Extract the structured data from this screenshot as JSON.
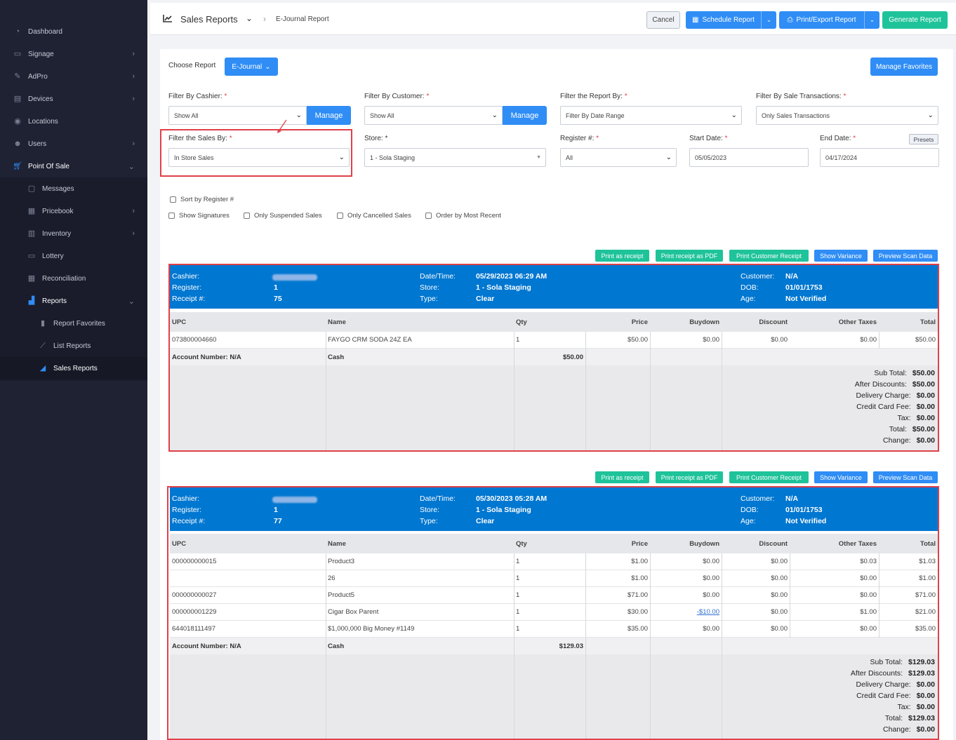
{
  "sidebar": {
    "items": [
      {
        "label": "Dashboard",
        "icon": "dashboard-icon",
        "chevron": false
      },
      {
        "label": "Signage",
        "icon": "monitor-icon",
        "chevron": true
      },
      {
        "label": "AdPro",
        "icon": "brush-icon",
        "chevron": true
      },
      {
        "label": "Devices",
        "icon": "devices-icon",
        "chevron": true
      },
      {
        "label": "Locations",
        "icon": "location-pin-icon",
        "chevron": false
      },
      {
        "label": "Users",
        "icon": "users-icon",
        "chevron": true
      },
      {
        "label": "Point Of Sale",
        "icon": "cart-icon",
        "chevron": true
      }
    ],
    "pos_items": [
      {
        "label": "Messages",
        "icon": "message-icon",
        "chevron": false
      },
      {
        "label": "Pricebook",
        "icon": "calculator-icon",
        "chevron": true
      },
      {
        "label": "Inventory",
        "icon": "inventory-icon",
        "chevron": true
      },
      {
        "label": "Lottery",
        "icon": "ticket-icon",
        "chevron": false
      },
      {
        "label": "Reconciliation",
        "icon": "grid-icon",
        "chevron": false
      },
      {
        "label": "Reports",
        "icon": "chart-icon",
        "chevron": true
      }
    ],
    "report_items": [
      {
        "label": "Report Favorites",
        "icon": "bookmark-icon"
      },
      {
        "label": "List Reports",
        "icon": "line-chart-icon"
      },
      {
        "label": "Sales Reports",
        "icon": "area-chart-icon"
      }
    ]
  },
  "header": {
    "title": "Sales Reports",
    "breadcrumb": "E-Journal Report",
    "cancel": "Cancel",
    "schedule": "Schedule Report",
    "print_export": "Print/Export Report",
    "generate": "Generate Report"
  },
  "choose": {
    "label": "Choose Report",
    "selected": "E-Journal",
    "manage_favorites": "Manage Favorites"
  },
  "filters": {
    "cashier": {
      "label": "Filter By Cashier:",
      "value": "Show All",
      "manage": "Manage"
    },
    "customer": {
      "label": "Filter By Customer:",
      "value": "Show All",
      "manage": "Manage"
    },
    "report_by": {
      "label": "Filter the Report By:",
      "value": "Filter By Date Range"
    },
    "sale_trans": {
      "label": "Filter By Sale Transactions:",
      "value": "Only Sales Transactions"
    },
    "sales_by": {
      "label": "Filter the Sales By:",
      "value": "In Store Sales"
    },
    "store": {
      "label": "Store:",
      "value": "1 - Sola Staging"
    },
    "register": {
      "label": "Register #:",
      "value": "All"
    },
    "start_date": {
      "label": "Start Date:",
      "value": "05/05/2023"
    },
    "end_date": {
      "label": "End Date:",
      "value": "04/17/2024"
    },
    "presets": "Presets",
    "required": "*"
  },
  "options": {
    "sort_register": "Sort by Register #",
    "show_signatures": "Show Signatures",
    "only_suspended": "Only Suspended Sales",
    "only_cancelled": "Only Cancelled Sales",
    "order_recent": "Order by Most Recent"
  },
  "actions": {
    "print_receipt": "Print as receipt",
    "print_pdf": "Print receipt as PDF",
    "print_customer": "Print Customer Receipt",
    "show_variance": "Show Variance",
    "preview_scan": "Preview Scan Data"
  },
  "labels": {
    "cashier": "Cashier:",
    "register": "Register:",
    "receipt": "Receipt #:",
    "datetime": "Date/Time:",
    "store": "Store:",
    "type": "Type:",
    "customer": "Customer:",
    "dob": "DOB:",
    "age": "Age:",
    "cols": [
      "UPC",
      "Name",
      "Qty",
      "Price",
      "Buydown",
      "Discount",
      "Other Taxes",
      "Total"
    ],
    "sub_total": "Sub Total:",
    "after_discounts": "After Discounts:",
    "delivery": "Delivery Charge:",
    "cc_fee": "Credit Card Fee:",
    "tax": "Tax:",
    "total": "Total:",
    "change": "Change:"
  },
  "receipts": [
    {
      "register": "1",
      "receipt": "75",
      "datetime": "05/29/2023 06:29 AM",
      "store": "1 - Sola Staging",
      "type": "Clear",
      "customer": "N/A",
      "dob": "01/01/1753",
      "age": "Not Verified",
      "rows": [
        {
          "upc": "073800004660",
          "name": "FAYGO CRM SODA 24Z EA",
          "qty": "1",
          "price": "$50.00",
          "buydown": "$0.00",
          "discount": "$0.00",
          "other_taxes": "$0.00",
          "total": "$50.00"
        }
      ],
      "account": "Account Number: N/A",
      "tender": "Cash",
      "tender_amount": "$50.00",
      "sub_total": "$50.00",
      "after_discounts": "$50.00",
      "delivery": "$0.00",
      "cc_fee": "$0.00",
      "tax": "$0.00",
      "total": "$50.00",
      "change": "$0.00"
    },
    {
      "register": "1",
      "receipt": "77",
      "datetime": "05/30/2023 05:28 AM",
      "store": "1 - Sola Staging",
      "type": "Clear",
      "customer": "N/A",
      "dob": "01/01/1753",
      "age": "Not Verified",
      "rows": [
        {
          "upc": "000000000015",
          "name": "Product3",
          "qty": "1",
          "price": "$1.00",
          "buydown": "$0.00",
          "discount": "$0.00",
          "other_taxes": "$0.03",
          "total": "$1.03"
        },
        {
          "upc": "",
          "name": "26",
          "qty": "1",
          "price": "$1.00",
          "buydown": "$0.00",
          "discount": "$0.00",
          "other_taxes": "$0.00",
          "total": "$1.00"
        },
        {
          "upc": "000000000027",
          "name": "Product5",
          "qty": "1",
          "price": "$71.00",
          "buydown": "$0.00",
          "discount": "$0.00",
          "other_taxes": "$0.00",
          "total": "$71.00"
        },
        {
          "upc": "000000001229",
          "name": "Cigar Box Parent",
          "qty": "1",
          "price": "$30.00",
          "buydown": "-$10.00",
          "discount": "$0.00",
          "other_taxes": "$1.00",
          "total": "$21.00"
        },
        {
          "upc": "644018111497",
          "name": "$1,000,000 Big Money #1149",
          "qty": "1",
          "price": "$35.00",
          "buydown": "$0.00",
          "discount": "$0.00",
          "other_taxes": "$0.00",
          "total": "$35.00"
        }
      ],
      "account": "Account Number: N/A",
      "tender": "Cash",
      "tender_amount": "$129.03",
      "sub_total": "$129.03",
      "after_discounts": "$129.03",
      "delivery": "$0.00",
      "cc_fee": "$0.00",
      "tax": "$0.00",
      "total": "$129.03",
      "change": "$0.00"
    }
  ],
  "colors": {
    "accent": "#2f8df5",
    "green": "#1fc39a",
    "header_blue": "#0077d1",
    "highlight_red": "#e0404a",
    "sidebar": "#1f2233"
  }
}
